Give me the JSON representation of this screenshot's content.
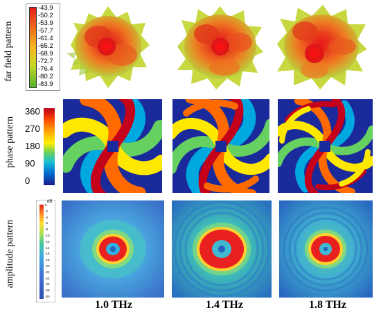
{
  "rows": {
    "far_field": "far field pattern",
    "phase": "phase pattern",
    "amplitude": "amplitude pattern"
  },
  "far_field_scale": {
    "ticks": [
      "-43.9",
      "-50.2",
      "-53.9",
      "-57.7",
      "-61.4",
      "-65.2",
      "-68.9",
      "-72.7",
      "-76.4",
      "-80.2",
      "-83.9"
    ],
    "colors": [
      "#e8201b",
      "#f07a1c",
      "#f5c21e",
      "#b9d626",
      "#5cb82e"
    ]
  },
  "phase_scale": {
    "ticks": [
      "360",
      "270",
      "180",
      "90",
      "0"
    ],
    "colors": [
      "#c4001a",
      "#ff6600",
      "#ffe000",
      "#33cc66",
      "#00a0e0",
      "#1a2aa0"
    ]
  },
  "amplitude_scale": {
    "unit": "dB",
    "ticks": [
      "0",
      "-2",
      "-4",
      "-6",
      "-8",
      "-10",
      "-12",
      "-14",
      "-16",
      "-18",
      "-20",
      "-22",
      "-24",
      "-26",
      "-28",
      "-30"
    ]
  },
  "frequencies": [
    "1.0 THz",
    "1.4 THz",
    "1.8 THz"
  ]
}
